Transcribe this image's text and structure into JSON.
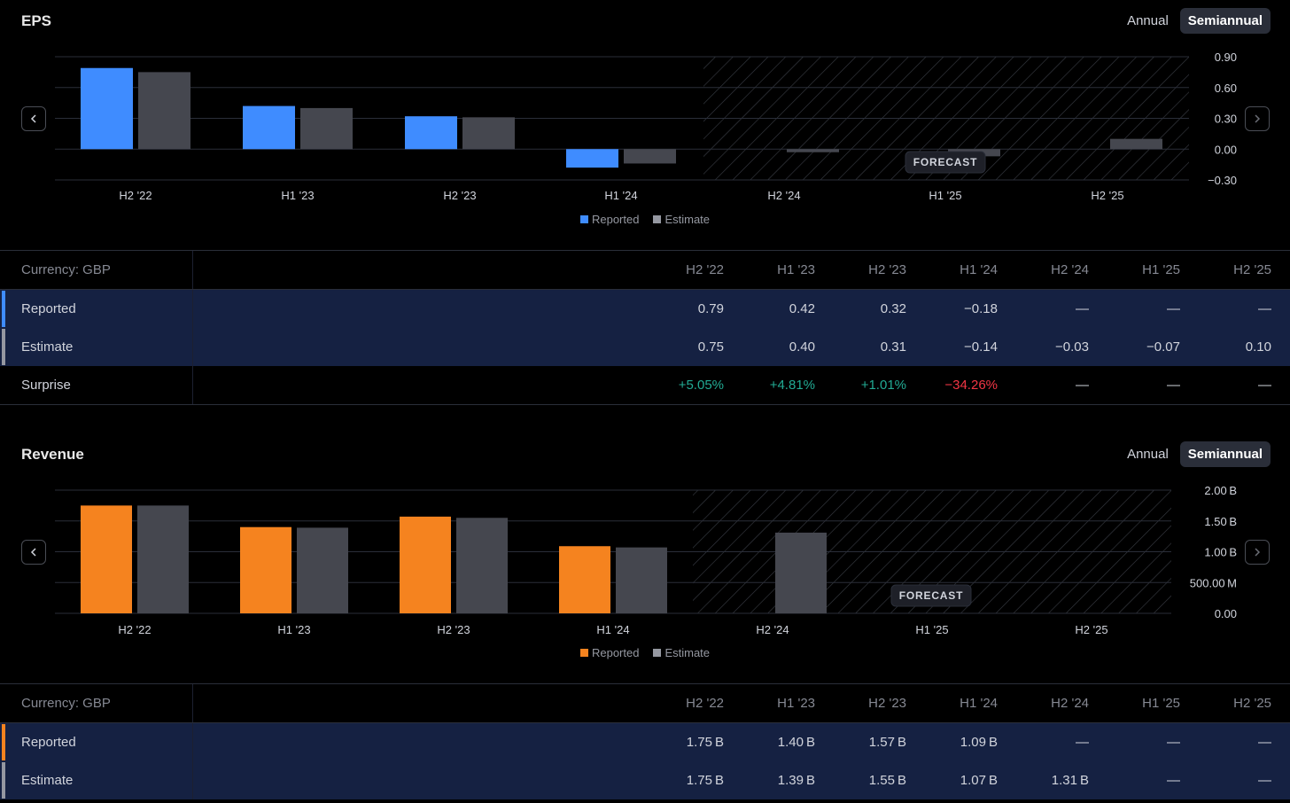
{
  "colors": {
    "eps_reported": "#3f8cff",
    "rev_reported": "#f5831f",
    "estimate": "#45474f",
    "estimate_swatch": "#9598a1"
  },
  "toggle": {
    "annual": "Annual",
    "semiannual": "Semiannual"
  },
  "legend": {
    "reported": "Reported",
    "estimate": "Estimate"
  },
  "forecast_label": "FORECAST",
  "eps": {
    "title": "EPS",
    "chart_data": {
      "type": "bar",
      "categories": [
        "H2 '22",
        "H1 '23",
        "H2 '23",
        "H1 '24",
        "H2 '24",
        "H1 '25",
        "H2 '25"
      ],
      "series": [
        {
          "name": "Reported",
          "values": [
            0.79,
            0.42,
            0.32,
            -0.18,
            null,
            null,
            null
          ]
        },
        {
          "name": "Estimate",
          "values": [
            0.75,
            0.4,
            0.31,
            -0.14,
            -0.03,
            -0.07,
            0.1
          ]
        }
      ],
      "yticks": [
        "0.90",
        "0.60",
        "0.30",
        "0.00",
        "−0.30"
      ],
      "ylim": [
        -0.3,
        0.9
      ],
      "forecast_from": "H2 '24"
    },
    "table": {
      "currency": "Currency: GBP",
      "headers": [
        "H2 '22",
        "H1 '23",
        "H2 '23",
        "H1 '24",
        "H2 '24",
        "H1 '25",
        "H2 '25"
      ],
      "reported_label": "Reported",
      "reported": [
        "0.79",
        "0.42",
        "0.32",
        "−0.18",
        "—",
        "—",
        "—"
      ],
      "estimate_label": "Estimate",
      "estimate": [
        "0.75",
        "0.40",
        "0.31",
        "−0.14",
        "−0.03",
        "−0.07",
        "0.10"
      ],
      "surprise_label": "Surprise",
      "surprise": [
        "+5.05%",
        "+4.81%",
        "+1.01%",
        "−34.26%",
        "—",
        "—",
        "—"
      ]
    }
  },
  "revenue": {
    "title": "Revenue",
    "chart_data": {
      "type": "bar",
      "categories": [
        "H2 '22",
        "H1 '23",
        "H2 '23",
        "H1 '24",
        "H2 '24",
        "H1 '25",
        "H2 '25"
      ],
      "series": [
        {
          "name": "Reported",
          "values": [
            1.75,
            1.4,
            1.57,
            1.09,
            null,
            null,
            null
          ]
        },
        {
          "name": "Estimate",
          "values": [
            1.75,
            1.39,
            1.55,
            1.07,
            1.31,
            null,
            null
          ]
        }
      ],
      "unit": "B",
      "yticks": [
        "2.00 B",
        "1.50 B",
        "1.00 B",
        "500.00 M",
        "0.00"
      ],
      "ylim": [
        0,
        2.0
      ],
      "forecast_from": "H2 '24"
    },
    "table": {
      "currency": "Currency: GBP",
      "headers": [
        "H2 '22",
        "H1 '23",
        "H2 '23",
        "H1 '24",
        "H2 '24",
        "H1 '25",
        "H2 '25"
      ],
      "reported_label": "Reported",
      "reported": [
        "1.75 B",
        "1.40 B",
        "1.57 B",
        "1.09 B",
        "—",
        "—",
        "—"
      ],
      "estimate_label": "Estimate",
      "estimate": [
        "1.75 B",
        "1.39 B",
        "1.55 B",
        "1.07 B",
        "1.31 B",
        "—",
        "—"
      ]
    }
  }
}
